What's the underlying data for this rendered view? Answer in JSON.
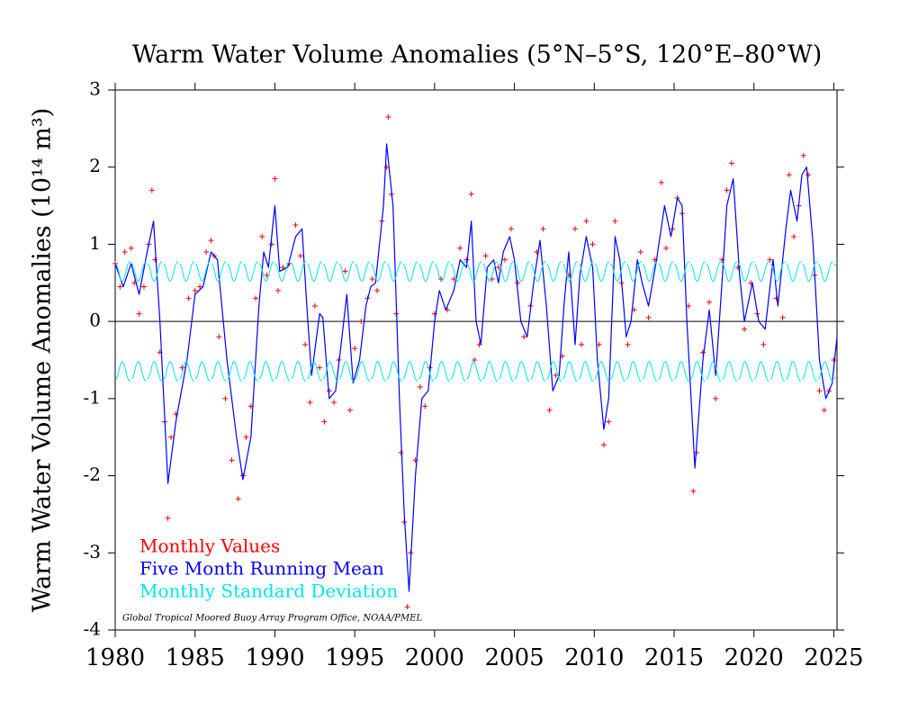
{
  "chart_data": {
    "type": "line",
    "title": "Warm Water Volume Anomalies (5°N–5°S, 120°E–80°W)",
    "y_label": "Warm Water Volume Anomalies (10¹⁴ m³)",
    "annotation": "Global Tropical Moored Buoy Array Program Office, NOAA/PMEL",
    "xlim": [
      1980,
      2025.2
    ],
    "ylim": [
      -4,
      3
    ],
    "xticks": [
      1980,
      1985,
      1990,
      1995,
      2000,
      2005,
      2010,
      2015,
      2020,
      2025
    ],
    "yticks": [
      -4,
      -3,
      -2,
      -1,
      0,
      1,
      2,
      3
    ],
    "legend": "lower left",
    "series": [
      {
        "name": "Monthly Values",
        "color": "#ff0000",
        "style": "plus",
        "x": [
          1980.0,
          1980.3,
          1980.6,
          1981.0,
          1981.2,
          1981.5,
          1981.8,
          1982.1,
          1982.3,
          1982.5,
          1982.8,
          1983.1,
          1983.3,
          1983.5,
          1983.8,
          1984.2,
          1984.6,
          1985.0,
          1985.3,
          1985.7,
          1986.0,
          1986.2,
          1986.5,
          1986.9,
          1987.3,
          1987.7,
          1988.0,
          1988.2,
          1988.5,
          1988.8,
          1989.2,
          1989.5,
          1989.8,
          1990.0,
          1990.2,
          1990.5,
          1990.9,
          1991.3,
          1991.6,
          1991.9,
          1992.2,
          1992.5,
          1992.8,
          1993.1,
          1993.4,
          1993.7,
          1994.0,
          1994.4,
          1994.7,
          1995.0,
          1995.4,
          1995.8,
          1996.1,
          1996.4,
          1996.7,
          1997.0,
          1997.1,
          1997.3,
          1997.6,
          1997.9,
          1998.1,
          1998.3,
          1998.5,
          1998.8,
          1999.1,
          1999.4,
          1999.7,
          2000.0,
          2000.4,
          2000.8,
          2001.2,
          2001.6,
          2002.0,
          2002.3,
          2002.5,
          2002.8,
          2003.2,
          2003.6,
          2004.0,
          2004.4,
          2004.8,
          2005.2,
          2005.6,
          2006.0,
          2006.4,
          2006.8,
          2007.2,
          2007.6,
          2008.0,
          2008.4,
          2008.8,
          2009.2,
          2009.5,
          2009.9,
          2010.3,
          2010.6,
          2010.9,
          2011.3,
          2011.7,
          2012.1,
          2012.5,
          2012.9,
          2013.4,
          2013.8,
          2014.2,
          2014.5,
          2014.9,
          2015.2,
          2015.5,
          2015.9,
          2016.2,
          2016.4,
          2016.8,
          2017.2,
          2017.6,
          2018.0,
          2018.3,
          2018.6,
          2019.0,
          2019.4,
          2019.8,
          2020.2,
          2020.6,
          2021.0,
          2021.4,
          2021.8,
          2022.2,
          2022.5,
          2022.8,
          2023.1,
          2023.4,
          2023.8,
          2024.1,
          2024.4,
          2024.7,
          2025.0
        ],
        "values": [
          0.75,
          0.45,
          0.9,
          0.95,
          0.5,
          0.1,
          0.45,
          1.0,
          1.7,
          0.8,
          -0.4,
          -1.3,
          -2.55,
          -1.5,
          -1.2,
          -0.6,
          0.3,
          0.4,
          0.45,
          0.9,
          1.05,
          0.85,
          -0.2,
          -1.0,
          -1.8,
          -2.3,
          -2.0,
          -1.5,
          -1.1,
          0.3,
          1.1,
          0.6,
          1.0,
          1.85,
          0.4,
          0.7,
          0.75,
          1.25,
          0.85,
          -0.3,
          -1.05,
          0.2,
          -0.6,
          -1.3,
          -0.9,
          -1.05,
          -0.5,
          0.65,
          -1.15,
          -0.35,
          0.0,
          0.3,
          0.55,
          0.4,
          1.3,
          2.0,
          2.65,
          1.65,
          0.1,
          -1.7,
          -2.6,
          -3.7,
          -3.0,
          -1.8,
          -0.85,
          -1.1,
          -0.6,
          0.1,
          0.55,
          0.15,
          0.55,
          0.95,
          0.8,
          1.65,
          -0.5,
          -0.3,
          0.85,
          0.55,
          0.7,
          0.8,
          1.2,
          0.5,
          -0.2,
          0.2,
          0.9,
          1.2,
          -1.15,
          -0.7,
          -0.45,
          0.6,
          1.2,
          -0.3,
          1.3,
          1.0,
          -0.3,
          -1.6,
          -1.3,
          1.3,
          0.5,
          -0.3,
          0.15,
          0.9,
          0.05,
          0.8,
          1.8,
          0.95,
          1.2,
          1.6,
          1.4,
          0.2,
          -2.2,
          -1.7,
          -0.4,
          0.25,
          -1.0,
          0.8,
          1.7,
          2.05,
          0.7,
          -0.1,
          0.5,
          0.1,
          -0.3,
          0.8,
          0.3,
          0.05,
          1.9,
          1.1,
          1.5,
          2.15,
          1.9,
          0.6,
          -0.9,
          -1.15,
          -0.9,
          -0.5
        ]
      },
      {
        "name": "Five Month Running Mean",
        "color": "#0000ff",
        "style": "line",
        "x": [
          1980.0,
          1980.5,
          1981.0,
          1981.5,
          1982.0,
          1982.4,
          1982.8,
          1983.3,
          1983.8,
          1984.5,
          1985.0,
          1985.5,
          1986.0,
          1986.4,
          1987.0,
          1987.6,
          1988.0,
          1988.5,
          1989.0,
          1989.3,
          1989.6,
          1990.0,
          1990.3,
          1990.8,
          1991.3,
          1991.7,
          1992.0,
          1992.3,
          1992.8,
          1993.0,
          1993.4,
          1993.8,
          1994.2,
          1994.5,
          1994.9,
          1995.3,
          1995.7,
          1996.0,
          1996.3,
          1996.8,
          1997.0,
          1997.4,
          1997.8,
          1998.1,
          1998.4,
          1998.8,
          1999.2,
          1999.6,
          2000.0,
          2000.3,
          2000.7,
          2001.2,
          2001.6,
          2002.0,
          2002.3,
          2002.6,
          2002.9,
          2003.3,
          2003.7,
          2004.0,
          2004.3,
          2004.7,
          2005.0,
          2005.4,
          2005.8,
          2006.2,
          2006.6,
          2007.0,
          2007.4,
          2007.8,
          2008.1,
          2008.4,
          2008.8,
          2009.1,
          2009.5,
          2009.9,
          2010.2,
          2010.6,
          2010.9,
          2011.3,
          2011.6,
          2012.0,
          2012.3,
          2012.7,
          2013.0,
          2013.4,
          2013.9,
          2014.4,
          2014.8,
          2015.2,
          2015.5,
          2015.8,
          2016.3,
          2016.8,
          2017.2,
          2017.6,
          2018.0,
          2018.3,
          2018.7,
          2019.1,
          2019.4,
          2019.9,
          2020.3,
          2020.7,
          2021.2,
          2021.5,
          2022.0,
          2022.3,
          2022.7,
          2023.0,
          2023.3,
          2023.7,
          2024.1,
          2024.5,
          2024.9,
          2025.2
        ],
        "values": [
          0.75,
          0.45,
          0.75,
          0.35,
          0.9,
          1.3,
          0.0,
          -2.1,
          -1.3,
          -0.5,
          0.35,
          0.45,
          0.9,
          0.8,
          -0.5,
          -1.5,
          -2.05,
          -1.5,
          0.2,
          0.9,
          0.7,
          1.5,
          0.65,
          0.7,
          1.1,
          1.2,
          0.2,
          -0.7,
          0.1,
          0.05,
          -1.0,
          -0.9,
          -0.2,
          0.35,
          -0.8,
          -0.5,
          0.2,
          0.45,
          0.5,
          1.5,
          2.3,
          1.5,
          -1.0,
          -2.5,
          -3.5,
          -2.0,
          -1.0,
          -0.9,
          0.0,
          0.4,
          0.15,
          0.4,
          0.8,
          0.7,
          1.3,
          0.0,
          -0.3,
          0.7,
          0.8,
          0.5,
          0.9,
          1.1,
          0.8,
          0.0,
          -0.2,
          0.5,
          1.05,
          0.2,
          -0.9,
          -0.7,
          0.2,
          0.9,
          -0.3,
          0.6,
          1.1,
          0.7,
          -0.5,
          -1.4,
          -1.0,
          1.1,
          0.8,
          -0.2,
          0.0,
          0.8,
          0.5,
          0.2,
          0.8,
          1.5,
          1.1,
          1.6,
          1.5,
          0.0,
          -1.9,
          -0.5,
          0.15,
          -0.7,
          0.5,
          1.5,
          1.85,
          0.6,
          0.0,
          0.5,
          0.0,
          -0.1,
          0.8,
          0.2,
          1.2,
          1.7,
          1.3,
          1.9,
          2.0,
          1.0,
          -0.5,
          -1.0,
          -0.8,
          -0.2
        ]
      },
      {
        "name": "Monthly Standard Deviation",
        "color": "#00e5ee",
        "style": "band",
        "values": [
          0.75,
          0.72,
          0.66,
          0.58,
          0.53,
          0.52,
          0.55,
          0.61,
          0.68,
          0.74,
          0.77,
          0.77
        ]
      }
    ]
  }
}
